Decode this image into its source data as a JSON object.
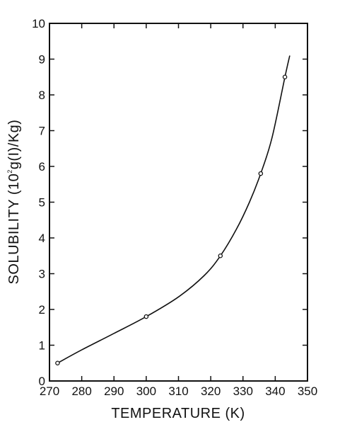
{
  "chart_data": {
    "type": "scatter",
    "title": "",
    "xlabel": "TEMPERATURE (K)",
    "ylabel": {
      "prefix": "SOLUBILITY (10",
      "exponent": "2",
      "suffix": "g(I)/Kg)"
    },
    "xlim": [
      270,
      350
    ],
    "ylim": [
      0,
      10
    ],
    "x_ticks": [
      270,
      280,
      290,
      300,
      310,
      320,
      330,
      340,
      350
    ],
    "y_ticks": [
      0,
      1,
      2,
      3,
      4,
      5,
      6,
      7,
      8,
      9,
      10
    ],
    "grid": false,
    "series": [
      {
        "markers": "open-circle",
        "points": [
          {
            "x": 272.5,
            "y": 0.5
          },
          {
            "x": 300.0,
            "y": 1.8
          },
          {
            "x": 323.0,
            "y": 3.5
          },
          {
            "x": 335.5,
            "y": 5.8
          },
          {
            "x": 343.0,
            "y": 8.5
          }
        ]
      }
    ],
    "fit_curve": [
      {
        "x": 272.5,
        "y": 0.5
      },
      {
        "x": 280,
        "y": 0.87
      },
      {
        "x": 290,
        "y": 1.33
      },
      {
        "x": 300,
        "y": 1.8
      },
      {
        "x": 310,
        "y": 2.35
      },
      {
        "x": 318,
        "y": 2.95
      },
      {
        "x": 323,
        "y": 3.5
      },
      {
        "x": 328,
        "y": 4.25
      },
      {
        "x": 332,
        "y": 5.0
      },
      {
        "x": 335.5,
        "y": 5.8
      },
      {
        "x": 339,
        "y": 6.8
      },
      {
        "x": 343,
        "y": 8.5
      },
      {
        "x": 344.5,
        "y": 9.1
      }
    ]
  }
}
